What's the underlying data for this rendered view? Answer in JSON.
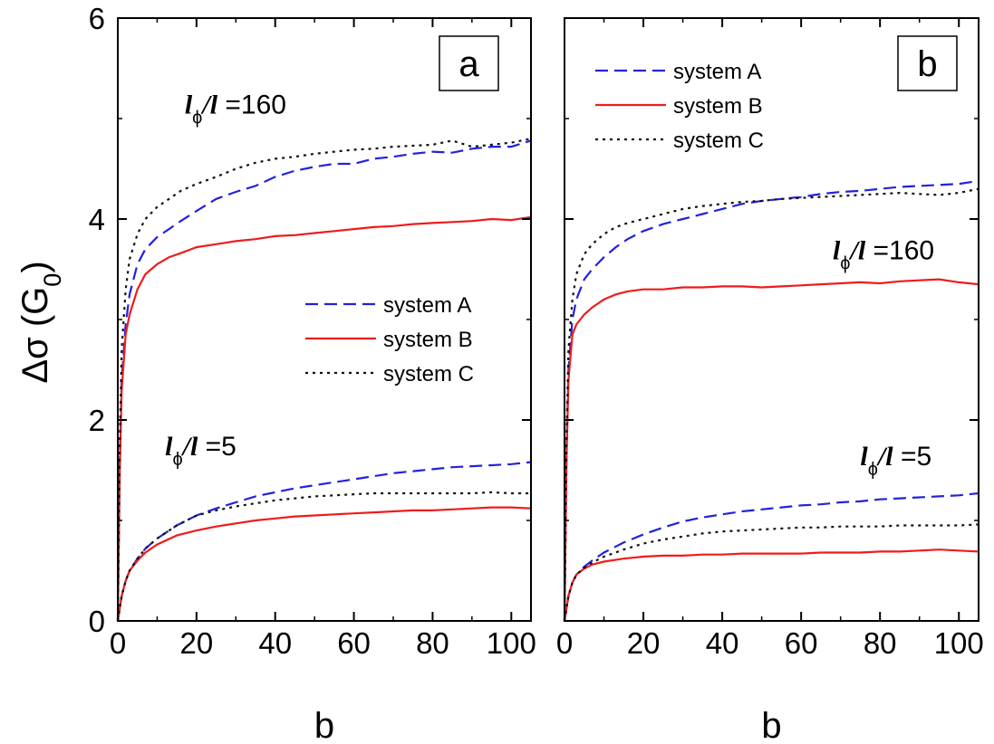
{
  "figure": {
    "ylabel_main": "Δσ (G",
    "ylabel_sub": "0",
    "ylabel_close": ")"
  },
  "chart_data": [
    {
      "type": "line",
      "panel_label": "a",
      "xlabel": "b",
      "ylabel": "Δσ (G0)",
      "xlim": [
        0,
        105
      ],
      "ylim": [
        0,
        6
      ],
      "xticks": [
        "0",
        "20",
        "40",
        "60",
        "80",
        "100"
      ],
      "yticks": [
        "0",
        "2",
        "4",
        "6"
      ],
      "grid": false,
      "legend_position": "middle-right",
      "legend": [
        {
          "name": "system A",
          "color": "#2222dd",
          "style": "dashed"
        },
        {
          "name": "system B",
          "color": "#ee1c1c",
          "style": "solid"
        },
        {
          "name": "system C",
          "color": "#111111",
          "style": "dotted"
        }
      ],
      "annotations": [
        {
          "text_l1": "l",
          "text_phi": "ϕ",
          "text_l2": "/l",
          "text_val": " =160",
          "x": 17,
          "y": 5.05
        },
        {
          "text_l1": "l",
          "text_phi": "ϕ",
          "text_l2": "/l",
          "text_val": " =5",
          "x": 12,
          "y": 1.65
        }
      ],
      "series": [
        {
          "name": "system A",
          "group": "160",
          "color": "#2222dd",
          "style": "dashed",
          "x": [
            0,
            0.5,
            1,
            2,
            3,
            5,
            7,
            10,
            13,
            16,
            20,
            25,
            30,
            35,
            40,
            45,
            50,
            55,
            60,
            65,
            70,
            75,
            80,
            85,
            90,
            95,
            100,
            105
          ],
          "y": [
            0,
            1.6,
            2.4,
            2.95,
            3.25,
            3.55,
            3.7,
            3.82,
            3.9,
            3.98,
            4.08,
            4.2,
            4.27,
            4.33,
            4.42,
            4.48,
            4.52,
            4.55,
            4.55,
            4.6,
            4.62,
            4.65,
            4.67,
            4.66,
            4.7,
            4.72,
            4.72,
            4.78
          ]
        },
        {
          "name": "system B",
          "group": "160",
          "color": "#ee1c1c",
          "style": "solid",
          "x": [
            0,
            0.5,
            1,
            2,
            3,
            5,
            7,
            10,
            13,
            16,
            20,
            25,
            30,
            35,
            40,
            45,
            50,
            55,
            60,
            65,
            70,
            75,
            80,
            85,
            90,
            95,
            100,
            105
          ],
          "y": [
            0,
            1.5,
            2.3,
            2.85,
            3.05,
            3.3,
            3.45,
            3.55,
            3.62,
            3.66,
            3.72,
            3.75,
            3.78,
            3.8,
            3.83,
            3.84,
            3.86,
            3.88,
            3.9,
            3.92,
            3.93,
            3.95,
            3.96,
            3.97,
            3.98,
            4.0,
            3.99,
            4.02
          ]
        },
        {
          "name": "system C",
          "group": "160",
          "color": "#111111",
          "style": "dotted",
          "x": [
            0,
            0.5,
            1,
            2,
            3,
            5,
            7,
            10,
            13,
            16,
            20,
            25,
            30,
            35,
            40,
            45,
            50,
            55,
            60,
            65,
            70,
            75,
            80,
            85,
            90,
            95,
            100,
            105
          ],
          "y": [
            0,
            1.8,
            2.7,
            3.3,
            3.6,
            3.85,
            4.0,
            4.12,
            4.2,
            4.28,
            4.35,
            4.42,
            4.5,
            4.56,
            4.6,
            4.62,
            4.65,
            4.67,
            4.69,
            4.7,
            4.72,
            4.73,
            4.74,
            4.78,
            4.72,
            4.74,
            4.76,
            4.8
          ]
        },
        {
          "name": "system A",
          "group": "5",
          "color": "#2222dd",
          "style": "dashed",
          "x": [
            0,
            1,
            2,
            3,
            5,
            7,
            10,
            15,
            20,
            25,
            30,
            35,
            40,
            45,
            50,
            55,
            60,
            65,
            70,
            75,
            80,
            85,
            90,
            95,
            100,
            105
          ],
          "y": [
            0,
            0.25,
            0.4,
            0.5,
            0.62,
            0.72,
            0.82,
            0.95,
            1.05,
            1.12,
            1.18,
            1.24,
            1.28,
            1.32,
            1.35,
            1.38,
            1.41,
            1.44,
            1.47,
            1.49,
            1.51,
            1.53,
            1.54,
            1.55,
            1.56,
            1.58
          ]
        },
        {
          "name": "system B",
          "group": "5",
          "color": "#ee1c1c",
          "style": "solid",
          "x": [
            0,
            1,
            2,
            3,
            5,
            7,
            10,
            15,
            20,
            25,
            30,
            35,
            40,
            45,
            50,
            55,
            60,
            65,
            70,
            75,
            80,
            85,
            90,
            95,
            100,
            105
          ],
          "y": [
            0,
            0.25,
            0.4,
            0.5,
            0.6,
            0.68,
            0.76,
            0.85,
            0.9,
            0.94,
            0.97,
            1.0,
            1.02,
            1.04,
            1.05,
            1.06,
            1.07,
            1.08,
            1.09,
            1.1,
            1.1,
            1.11,
            1.12,
            1.13,
            1.13,
            1.12
          ]
        },
        {
          "name": "system C",
          "group": "5",
          "color": "#111111",
          "style": "dotted",
          "x": [
            0,
            1,
            2,
            3,
            5,
            7,
            10,
            15,
            20,
            25,
            30,
            35,
            40,
            45,
            50,
            55,
            60,
            65,
            70,
            75,
            80,
            85,
            90,
            95,
            100,
            105
          ],
          "y": [
            0,
            0.25,
            0.4,
            0.5,
            0.62,
            0.72,
            0.82,
            0.95,
            1.05,
            1.1,
            1.14,
            1.17,
            1.2,
            1.22,
            1.24,
            1.25,
            1.26,
            1.27,
            1.27,
            1.27,
            1.27,
            1.27,
            1.27,
            1.28,
            1.27,
            1.27
          ]
        }
      ]
    },
    {
      "type": "line",
      "panel_label": "b",
      "xlabel": "b",
      "ylabel": "",
      "xlim": [
        0,
        105
      ],
      "ylim": [
        0,
        6
      ],
      "xticks": [
        "0",
        "20",
        "40",
        "60",
        "80",
        "100"
      ],
      "yticks": [],
      "grid": false,
      "legend_position": "top-left",
      "legend": [
        {
          "name": "system A",
          "color": "#2222dd",
          "style": "dashed"
        },
        {
          "name": "system B",
          "color": "#ee1c1c",
          "style": "solid"
        },
        {
          "name": "system C",
          "color": "#111111",
          "style": "dotted"
        }
      ],
      "annotations": [
        {
          "text_l1": "l",
          "text_phi": "ϕ",
          "text_l2": "/l",
          "text_val": " =160",
          "x": 68,
          "y": 3.6
        },
        {
          "text_l1": "l",
          "text_phi": "ϕ",
          "text_l2": "/l",
          "text_val": " =5",
          "x": 75,
          "y": 1.55
        }
      ],
      "series": [
        {
          "name": "system A",
          "group": "160",
          "color": "#2222dd",
          "style": "dashed",
          "x": [
            0,
            0.5,
            1,
            2,
            3,
            5,
            7,
            10,
            13,
            16,
            20,
            25,
            30,
            35,
            40,
            45,
            50,
            55,
            60,
            65,
            70,
            75,
            80,
            85,
            90,
            95,
            100,
            105
          ],
          "y": [
            0,
            1.7,
            2.5,
            3.0,
            3.2,
            3.4,
            3.5,
            3.62,
            3.72,
            3.8,
            3.88,
            3.95,
            4.0,
            4.05,
            4.1,
            4.15,
            4.18,
            4.2,
            4.22,
            4.25,
            4.27,
            4.28,
            4.3,
            4.32,
            4.33,
            4.34,
            4.35,
            4.38
          ]
        },
        {
          "name": "system B",
          "group": "160",
          "color": "#ee1c1c",
          "style": "solid",
          "x": [
            0,
            0.5,
            1,
            2,
            3,
            5,
            7,
            10,
            13,
            16,
            20,
            25,
            30,
            35,
            40,
            45,
            50,
            55,
            60,
            65,
            70,
            75,
            80,
            85,
            90,
            95,
            100,
            105
          ],
          "y": [
            0,
            1.6,
            2.4,
            2.85,
            2.95,
            3.05,
            3.12,
            3.2,
            3.25,
            3.28,
            3.3,
            3.3,
            3.32,
            3.32,
            3.33,
            3.33,
            3.32,
            3.33,
            3.34,
            3.35,
            3.36,
            3.37,
            3.36,
            3.38,
            3.39,
            3.4,
            3.37,
            3.35
          ]
        },
        {
          "name": "system C",
          "group": "160",
          "color": "#111111",
          "style": "dotted",
          "x": [
            0,
            0.5,
            1,
            2,
            3,
            5,
            7,
            10,
            13,
            16,
            20,
            25,
            30,
            35,
            40,
            45,
            50,
            55,
            60,
            65,
            70,
            75,
            80,
            85,
            90,
            95,
            100,
            105
          ],
          "y": [
            0,
            1.8,
            2.7,
            3.2,
            3.45,
            3.65,
            3.75,
            3.85,
            3.92,
            3.96,
            4.0,
            4.05,
            4.1,
            4.13,
            4.15,
            4.17,
            4.18,
            4.2,
            4.21,
            4.22,
            4.23,
            4.24,
            4.25,
            4.26,
            4.25,
            4.24,
            4.26,
            4.3
          ]
        },
        {
          "name": "system A",
          "group": "5",
          "color": "#2222dd",
          "style": "dashed",
          "x": [
            0,
            1,
            2,
            3,
            5,
            7,
            10,
            15,
            20,
            25,
            30,
            35,
            40,
            45,
            50,
            55,
            60,
            65,
            70,
            75,
            80,
            85,
            90,
            95,
            100,
            105
          ],
          "y": [
            0,
            0.25,
            0.38,
            0.46,
            0.54,
            0.6,
            0.68,
            0.78,
            0.86,
            0.93,
            0.99,
            1.03,
            1.06,
            1.09,
            1.11,
            1.13,
            1.15,
            1.16,
            1.18,
            1.19,
            1.21,
            1.22,
            1.23,
            1.24,
            1.25,
            1.27
          ]
        },
        {
          "name": "system B",
          "group": "5",
          "color": "#ee1c1c",
          "style": "solid",
          "x": [
            0,
            1,
            2,
            3,
            5,
            7,
            10,
            15,
            20,
            25,
            30,
            35,
            40,
            45,
            50,
            55,
            60,
            65,
            70,
            75,
            80,
            85,
            90,
            95,
            100,
            105
          ],
          "y": [
            0,
            0.25,
            0.38,
            0.46,
            0.52,
            0.56,
            0.59,
            0.62,
            0.64,
            0.65,
            0.65,
            0.66,
            0.66,
            0.67,
            0.67,
            0.67,
            0.67,
            0.68,
            0.68,
            0.68,
            0.69,
            0.69,
            0.7,
            0.71,
            0.7,
            0.69
          ]
        },
        {
          "name": "system C",
          "group": "5",
          "color": "#111111",
          "style": "dotted",
          "x": [
            0,
            1,
            2,
            3,
            5,
            7,
            10,
            15,
            20,
            25,
            30,
            35,
            40,
            45,
            50,
            55,
            60,
            65,
            70,
            75,
            80,
            85,
            90,
            95,
            100,
            105
          ],
          "y": [
            0,
            0.25,
            0.38,
            0.46,
            0.53,
            0.58,
            0.64,
            0.71,
            0.77,
            0.81,
            0.84,
            0.87,
            0.89,
            0.9,
            0.91,
            0.92,
            0.93,
            0.93,
            0.94,
            0.94,
            0.94,
            0.95,
            0.95,
            0.95,
            0.95,
            0.96
          ]
        }
      ]
    }
  ]
}
